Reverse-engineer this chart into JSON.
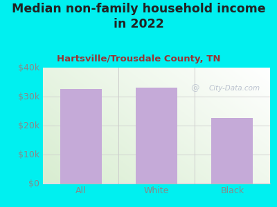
{
  "title": "Median non-family household income\nin 2022",
  "subtitle": "Hartsville/Trousdale County, TN",
  "categories": [
    "All",
    "White",
    "Black"
  ],
  "values": [
    32500,
    33000,
    22500
  ],
  "bar_color": "#c5aad8",
  "outer_bg": "#00f0f0",
  "plot_bg_color1": "#d8edd0",
  "plot_bg_color2": "#f5faf5",
  "plot_bg_white": "#ffffff",
  "title_color": "#222222",
  "subtitle_color": "#993333",
  "tick_label_color": "#888888",
  "ylim": [
    0,
    40000
  ],
  "yticks": [
    0,
    10000,
    20000,
    30000,
    40000
  ],
  "ytick_labels": [
    "$0",
    "$10k",
    "$20k",
    "$30k",
    "$40k"
  ],
  "watermark": "City-Data.com",
  "title_fontsize": 12.5,
  "subtitle_fontsize": 9.5,
  "tick_fontsize": 9
}
